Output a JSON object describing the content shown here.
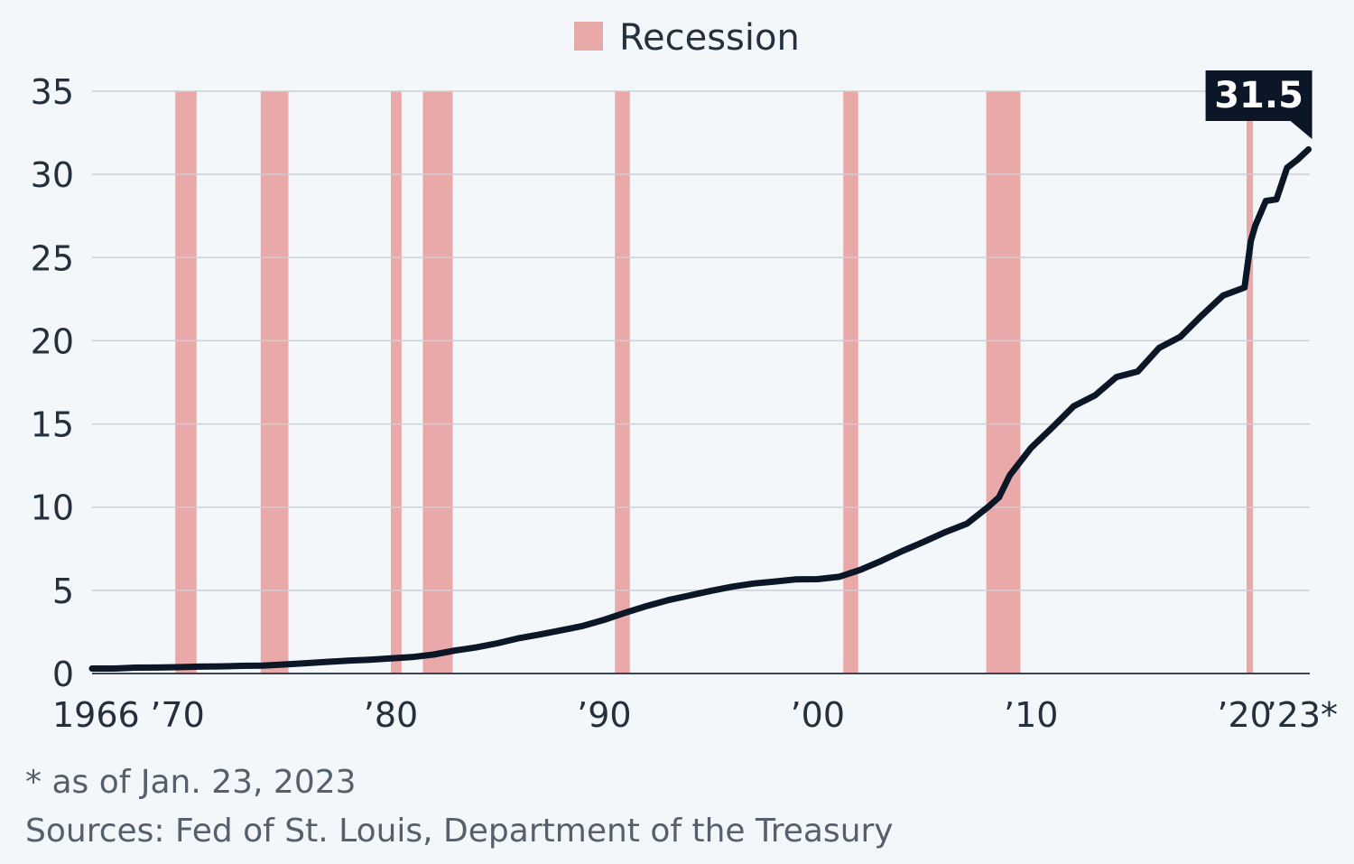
{
  "chart_data": {
    "type": "line",
    "title": "",
    "xlabel": "",
    "ylabel": "",
    "xlim": [
      1966,
      2023.06
    ],
    "ylim": [
      0,
      35
    ],
    "yticks": [
      0,
      5,
      10,
      15,
      20,
      25,
      30,
      35
    ],
    "xticks": [
      {
        "value": 1966,
        "label": "1966"
      },
      {
        "value": 1970,
        "label": "’70"
      },
      {
        "value": 1980,
        "label": "’80"
      },
      {
        "value": 1990,
        "label": "’90"
      },
      {
        "value": 2000,
        "label": "’00"
      },
      {
        "value": 2010,
        "label": "’10"
      },
      {
        "value": 2020,
        "label": "’20"
      },
      {
        "value": 2023,
        "label": "’23*"
      }
    ],
    "grid": true,
    "legend": {
      "position": "top-center",
      "entries": [
        {
          "name": "Recession",
          "color": "#eaa9a9"
        }
      ]
    },
    "recessions": [
      [
        1969.9,
        1970.9
      ],
      [
        1973.9,
        1975.2
      ],
      [
        1980.0,
        1980.5
      ],
      [
        1981.5,
        1982.9
      ],
      [
        1990.5,
        1991.2
      ],
      [
        2001.2,
        2001.9
      ],
      [
        2007.9,
        2009.5
      ],
      [
        2020.1,
        2020.4
      ]
    ],
    "series": [
      {
        "color": "#0b1727",
        "points": [
          [
            1966,
            0.3
          ],
          [
            1967,
            0.3
          ],
          [
            1968,
            0.35
          ],
          [
            1969,
            0.36
          ],
          [
            1970,
            0.38
          ],
          [
            1971,
            0.41
          ],
          [
            1972,
            0.43
          ],
          [
            1973,
            0.46
          ],
          [
            1974,
            0.48
          ],
          [
            1975,
            0.54
          ],
          [
            1976,
            0.62
          ],
          [
            1977,
            0.7
          ],
          [
            1978,
            0.77
          ],
          [
            1979,
            0.83
          ],
          [
            1980,
            0.91
          ],
          [
            1981,
            0.99
          ],
          [
            1982,
            1.14
          ],
          [
            1983,
            1.38
          ],
          [
            1984,
            1.57
          ],
          [
            1985,
            1.82
          ],
          [
            1986,
            2.12
          ],
          [
            1987,
            2.35
          ],
          [
            1988,
            2.6
          ],
          [
            1989,
            2.86
          ],
          [
            1990,
            3.23
          ],
          [
            1991,
            3.66
          ],
          [
            1992,
            4.06
          ],
          [
            1993,
            4.41
          ],
          [
            1994,
            4.69
          ],
          [
            1995,
            4.97
          ],
          [
            1996,
            5.22
          ],
          [
            1997,
            5.41
          ],
          [
            1998,
            5.53
          ],
          [
            1999,
            5.66
          ],
          [
            2000,
            5.67
          ],
          [
            2001,
            5.81
          ],
          [
            2002,
            6.23
          ],
          [
            2003,
            6.78
          ],
          [
            2004,
            7.38
          ],
          [
            2005,
            7.93
          ],
          [
            2006,
            8.51
          ],
          [
            2007,
            9.01
          ],
          [
            2008,
            10.02
          ],
          [
            2008.5,
            10.6
          ],
          [
            2009,
            11.91
          ],
          [
            2010,
            13.56
          ],
          [
            2011,
            14.79
          ],
          [
            2012,
            16.07
          ],
          [
            2013,
            16.72
          ],
          [
            2014,
            17.82
          ],
          [
            2015,
            18.15
          ],
          [
            2016,
            19.57
          ],
          [
            2017,
            20.24
          ],
          [
            2018,
            21.52
          ],
          [
            2019,
            22.72
          ],
          [
            2020,
            23.2
          ],
          [
            2020.3,
            26.0
          ],
          [
            2020.5,
            26.9
          ],
          [
            2021,
            28.4
          ],
          [
            2021.5,
            28.5
          ],
          [
            2022,
            30.4
          ],
          [
            2022.5,
            30.9
          ],
          [
            2023,
            31.5
          ]
        ]
      }
    ],
    "annotations": [
      {
        "x": 2023,
        "y": 31.5,
        "text": "31.5"
      }
    ]
  },
  "footnotes": {
    "note": "* as of Jan. 23, 2023",
    "sources": "Sources: Fed of St. Louis, Department of the Treasury"
  }
}
